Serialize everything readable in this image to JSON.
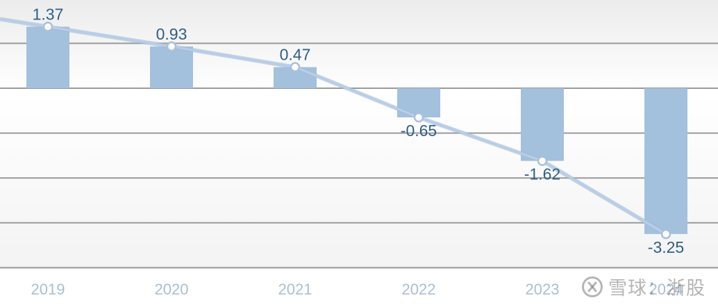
{
  "chart_data": {
    "type": "bar",
    "categories": [
      "2019",
      "2020",
      "2021",
      "2022",
      "2023",
      "2024"
    ],
    "series": [
      {
        "values": [
          1.37,
          0.93,
          0.47,
          -0.65,
          -1.62,
          -3.25
        ]
      }
    ],
    "trend_line": true,
    "ylim": [
      -4.0,
      1.9
    ],
    "grid": true,
    "colors": {
      "bar": "#a3c0dd",
      "line": "#b8cde6",
      "value_label": "#2e5f86",
      "tick_label": "#a9bfd3",
      "grid": "#9a9a9a"
    }
  },
  "watermark": {
    "text": "雪球：浙股",
    "icon": "xueqiu-logo-icon"
  }
}
